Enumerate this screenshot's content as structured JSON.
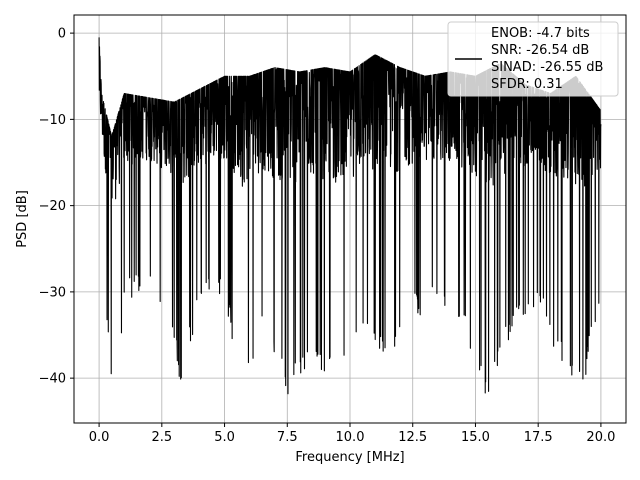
{
  "chart_data": {
    "type": "line",
    "title": "",
    "xlabel": "Frequency [MHz]",
    "ylabel": "PSD [dB]",
    "xlim": [
      -1.0,
      21.0
    ],
    "ylim": [
      -45.2,
      2.1
    ],
    "xticks": [
      0.0,
      2.5,
      5.0,
      7.5,
      10.0,
      12.5,
      15.0,
      17.5,
      20.0
    ],
    "xtick_labels": [
      "0.0",
      "2.5",
      "5.0",
      "7.5",
      "10.0",
      "12.5",
      "15.0",
      "17.5",
      "20.0"
    ],
    "yticks": [
      0,
      -10,
      -20,
      -30,
      -40
    ],
    "ytick_labels": [
      "0",
      "−10",
      "−20",
      "−30",
      "−40"
    ],
    "grid": true,
    "legend_position": "top-right",
    "legend_lines": [
      "ENOB: -4.7 bits",
      "SNR: -26.54 dB",
      "SINAD: -26.55 dB",
      "SFDR: 0.31"
    ],
    "series": [
      {
        "color": "#000000",
        "style": "dense noisy PSD trace",
        "x_range": [
          0.0,
          20.0
        ],
        "peak": {
          "x": 0.02,
          "y": -0.5
        },
        "upper_envelope": [
          [
            0.0,
            -0.5
          ],
          [
            0.1,
            -7.0
          ],
          [
            0.5,
            -12.0
          ],
          [
            1.0,
            -7.0
          ],
          [
            2.0,
            -7.5
          ],
          [
            3.0,
            -8.0
          ],
          [
            4.0,
            -6.5
          ],
          [
            5.0,
            -5.0
          ],
          [
            6.0,
            -5.0
          ],
          [
            7.0,
            -4.0
          ],
          [
            8.0,
            -4.5
          ],
          [
            9.0,
            -4.0
          ],
          [
            10.0,
            -4.5
          ],
          [
            11.0,
            -2.5
          ],
          [
            12.0,
            -4.0
          ],
          [
            13.0,
            -5.0
          ],
          [
            14.0,
            -4.5
          ],
          [
            15.0,
            -5.0
          ],
          [
            16.0,
            -3.5
          ],
          [
            17.0,
            -6.0
          ],
          [
            18.0,
            -7.0
          ],
          [
            19.0,
            -5.0
          ],
          [
            20.0,
            -9.0
          ]
        ],
        "lower_envelope": [
          [
            0.0,
            -14.0
          ],
          [
            0.2,
            -31.0
          ],
          [
            0.5,
            -41.0
          ],
          [
            0.7,
            -43.0
          ],
          [
            1.0,
            -32.0
          ],
          [
            2.0,
            -29.0
          ],
          [
            3.0,
            -36.0
          ],
          [
            3.2,
            -41.0
          ],
          [
            4.0,
            -32.0
          ],
          [
            5.0,
            -30.0
          ],
          [
            5.6,
            -41.8
          ],
          [
            6.5,
            -35.0
          ],
          [
            7.5,
            -42.2
          ],
          [
            8.5,
            -38.0
          ],
          [
            9.5,
            -40.8
          ],
          [
            10.5,
            -36.0
          ],
          [
            11.5,
            -38.0
          ],
          [
            12.5,
            -33.0
          ],
          [
            13.5,
            -32.0
          ],
          [
            14.5,
            -34.0
          ],
          [
            15.5,
            -43.0
          ],
          [
            16.5,
            -34.0
          ],
          [
            17.5,
            -32.0
          ],
          [
            18.5,
            -39.0
          ],
          [
            19.3,
            -41.0
          ],
          [
            20.0,
            -31.0
          ]
        ],
        "mean_level": -17.0
      }
    ]
  }
}
